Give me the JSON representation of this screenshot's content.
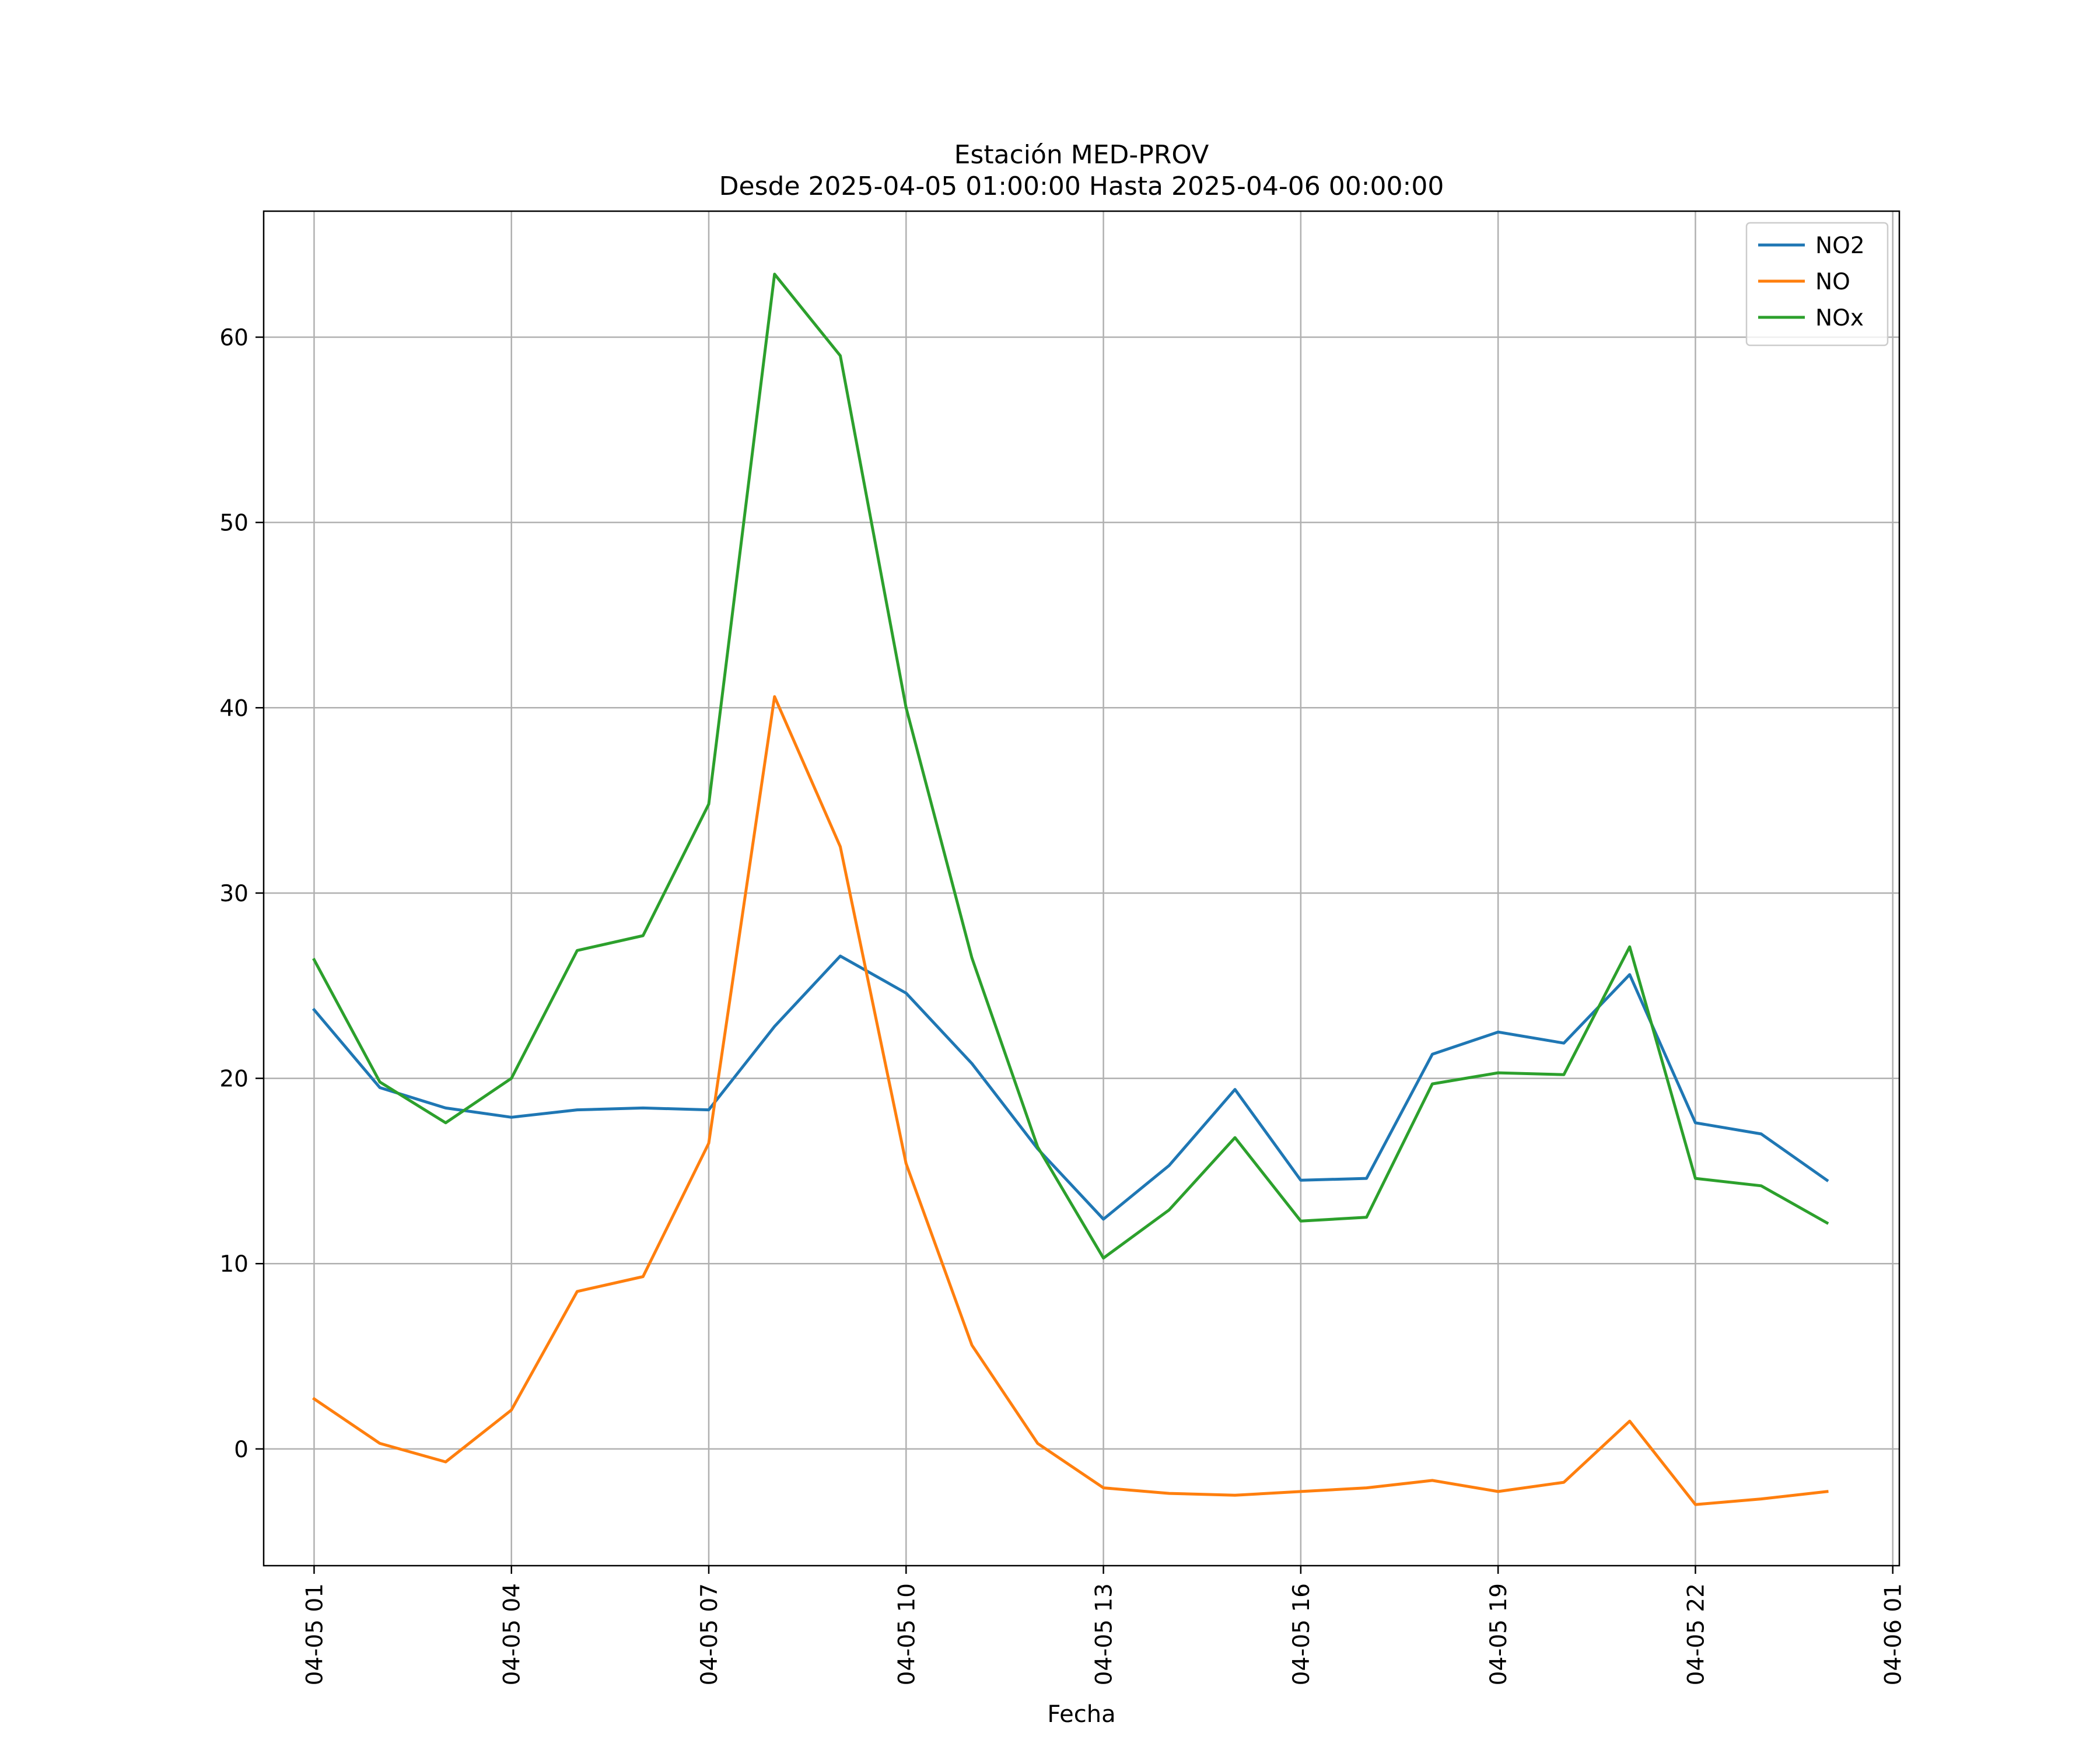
{
  "chart_data": {
    "type": "line",
    "title": "Estación MED-PROV",
    "subtitle": "Desde 2025-04-05 01:00:00 Hasta 2025-04-06 00:00:00",
    "xlabel": "Fecha",
    "ylabel": "",
    "x": [
      "04-05 01",
      "04-05 02",
      "04-05 03",
      "04-05 04",
      "04-05 05",
      "04-05 06",
      "04-05 07",
      "04-05 08",
      "04-05 09",
      "04-05 10",
      "04-05 11",
      "04-05 12",
      "04-05 13",
      "04-05 14",
      "04-05 15",
      "04-05 16",
      "04-05 17",
      "04-05 18",
      "04-05 19",
      "04-05 20",
      "04-05 21",
      "04-05 22",
      "04-05 23",
      "04-06 00"
    ],
    "x_ticks": [
      "04-05 01",
      "04-05 04",
      "04-05 07",
      "04-05 10",
      "04-05 13",
      "04-05 16",
      "04-05 19",
      "04-05 22",
      "04-06 01"
    ],
    "xlim": [
      "04-05 00:14",
      "04-06 01:06"
    ],
    "ylim": [
      -6.3,
      66.8
    ],
    "y_ticks": [
      0,
      10,
      20,
      30,
      40,
      50,
      60
    ],
    "grid": true,
    "legend_position": "top-right",
    "series": [
      {
        "name": "NO2",
        "color": "#1f77b4",
        "values": [
          23.7,
          19.5,
          18.4,
          17.9,
          18.3,
          18.4,
          18.3,
          22.8,
          26.6,
          24.6,
          20.8,
          16.2,
          12.4,
          15.3,
          19.4,
          14.5,
          14.6,
          21.3,
          22.5,
          21.9,
          25.6,
          17.6,
          17.0,
          14.5
        ]
      },
      {
        "name": "NO",
        "color": "#ff7f0e",
        "values": [
          2.7,
          0.3,
          -0.7,
          2.1,
          8.5,
          9.3,
          16.5,
          40.6,
          32.5,
          15.4,
          5.6,
          0.3,
          -2.1,
          -2.4,
          -2.5,
          -2.3,
          -2.1,
          -1.7,
          -2.3,
          -1.8,
          1.5,
          -3.0,
          -2.7,
          -2.3
        ]
      },
      {
        "name": "NOx",
        "color": "#2ca02c",
        "values": [
          26.4,
          19.8,
          17.6,
          20.0,
          26.9,
          27.7,
          34.8,
          63.4,
          59.0,
          40.0,
          26.5,
          16.3,
          10.3,
          12.9,
          16.8,
          12.3,
          12.5,
          19.7,
          20.3,
          20.2,
          27.1,
          14.6,
          14.2,
          12.2
        ]
      }
    ]
  }
}
